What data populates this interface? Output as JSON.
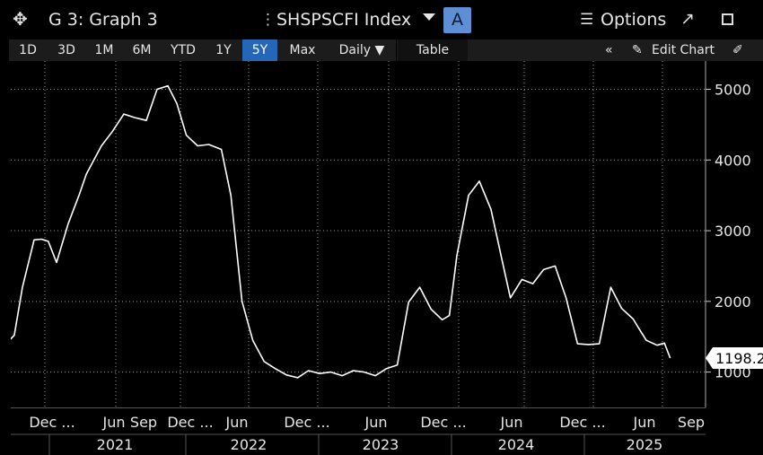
{
  "window": {
    "move_icon": "move-icon",
    "graph_title": "G 3: Graph 3",
    "ticker": "SHSPSCFI Index",
    "ticker_button": "A",
    "options_label": "Options"
  },
  "toolbar": {
    "ranges": [
      "1D",
      "3D",
      "1M",
      "6M",
      "YTD",
      "1Y",
      "5Y",
      "Max"
    ],
    "selected_range": "5Y",
    "frequency": "Daily",
    "table_label": "Table",
    "edit_chart_label": "Edit Chart"
  },
  "colors": {
    "selected_range": "#2666b8",
    "ticker_button": "#5c8fd3",
    "line": "#ffffff",
    "background": "#000000"
  },
  "chart_data": {
    "type": "line",
    "title": "",
    "ylabel": "",
    "xlabel": "",
    "ylim": [
      500,
      5400
    ],
    "yticks": [
      1000,
      2000,
      3000,
      4000,
      5000
    ],
    "grid": true,
    "last_value_label": "1198.2",
    "x_month_labels": [
      "Dec ...",
      "Jun",
      "Sep",
      "Dec ...",
      "Jun",
      "Dec ...",
      "Jun",
      "Dec ...",
      "Jun",
      "Dec ...",
      "Jun",
      "Sep"
    ],
    "x_year_labels": [
      "2021",
      "2022",
      "2023",
      "2024",
      "2025"
    ],
    "series": [
      {
        "x": [
          "2020-09-25",
          "2020-10-10",
          "2020-11-01",
          "2020-12-01",
          "2020-12-20",
          "2021-01-08",
          "2021-02-01",
          "2021-03-01",
          "2021-04-01",
          "2021-04-20",
          "2021-05-10",
          "2021-06-01",
          "2021-07-01",
          "2021-08-01",
          "2021-09-01",
          "2021-10-01",
          "2021-11-01",
          "2021-12-01",
          "2021-12-24",
          "2022-01-20",
          "2022-02-20",
          "2022-03-20",
          "2022-04-25",
          "2022-05-20",
          "2022-06-20",
          "2022-07-20",
          "2022-08-20",
          "2022-09-20",
          "2022-10-20",
          "2022-11-20",
          "2022-12-20",
          "2023-01-20",
          "2023-02-20",
          "2023-03-20",
          "2023-04-20",
          "2023-05-20",
          "2023-06-20",
          "2023-07-20",
          "2023-08-20",
          "2023-09-20",
          "2023-10-20",
          "2023-11-20",
          "2023-12-20",
          "2024-01-10",
          "2024-02-01",
          "2024-03-01",
          "2024-04-01",
          "2024-05-01",
          "2024-06-01",
          "2024-06-25",
          "2024-07-25",
          "2024-08-25",
          "2024-09-25",
          "2024-10-25",
          "2024-11-25",
          "2024-12-25",
          "2025-01-25",
          "2025-02-25",
          "2025-03-25",
          "2025-04-25",
          "2025-05-25",
          "2025-06-10",
          "2025-07-01",
          "2025-08-01",
          "2025-08-20",
          "2025-09-05"
        ],
        "y": [
          1445,
          1520,
          2200,
          2870,
          2880,
          2850,
          2550,
          3100,
          3500,
          3800,
          4000,
          4200,
          4400,
          4650,
          4600,
          4560,
          5000,
          5050,
          4800,
          4350,
          4200,
          4220,
          4150,
          3500,
          2000,
          1450,
          1150,
          1050,
          960,
          920,
          1020,
          980,
          1000,
          950,
          1020,
          1000,
          950,
          1050,
          1100,
          1990,
          2200,
          1890,
          1740,
          1800,
          2650,
          3500,
          3700,
          3300,
          2600,
          2050,
          2310,
          2250,
          2450,
          2500,
          2050,
          1400,
          1390,
          1400,
          2200,
          1900,
          1750,
          1620,
          1450,
          1380,
          1410,
          1198
        ]
      }
    ]
  }
}
